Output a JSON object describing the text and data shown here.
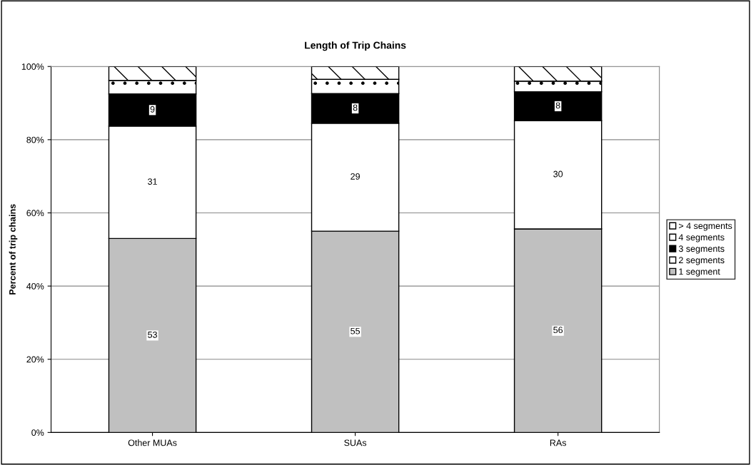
{
  "chart_data": {
    "type": "bar",
    "stacked": true,
    "title": "Length of Trip Chains",
    "ylabel": "Percent of trip chains",
    "categories": [
      "Other MUAs",
      "SUAs",
      "RAs"
    ],
    "series": [
      {
        "name": "1 segment",
        "color": "#c0c0c0",
        "values": [
          53.0,
          55.0,
          55.6
        ],
        "value_labels": [
          "53",
          "55",
          "56"
        ]
      },
      {
        "name": "2 segments",
        "color": "#ffffff",
        "values": [
          30.7,
          29.5,
          29.6
        ],
        "value_labels": [
          "31",
          "29",
          "30"
        ]
      },
      {
        "name": "3 segments",
        "color": "#000000",
        "values": [
          8.8,
          8.1,
          7.9
        ],
        "value_labels": [
          "9",
          "8",
          "8"
        ]
      },
      {
        "name": "4 segments",
        "color": "#ffffff",
        "values": [
          3.7,
          3.9,
          2.9
        ]
      },
      {
        "name": "> 4 segments",
        "color": "#ffffff",
        "values": [
          3.8,
          3.5,
          4.0
        ]
      }
    ],
    "ylim": [
      0,
      100
    ],
    "yticks": [
      {
        "value": 0,
        "label": "0%"
      },
      {
        "value": 20,
        "label": "20%"
      },
      {
        "value": 40,
        "label": "40%"
      },
      {
        "value": 60,
        "label": "60%"
      },
      {
        "value": 80,
        "label": "80%"
      },
      {
        "value": 100,
        "label": "100%"
      }
    ],
    "grid": "y",
    "legend": "right"
  }
}
